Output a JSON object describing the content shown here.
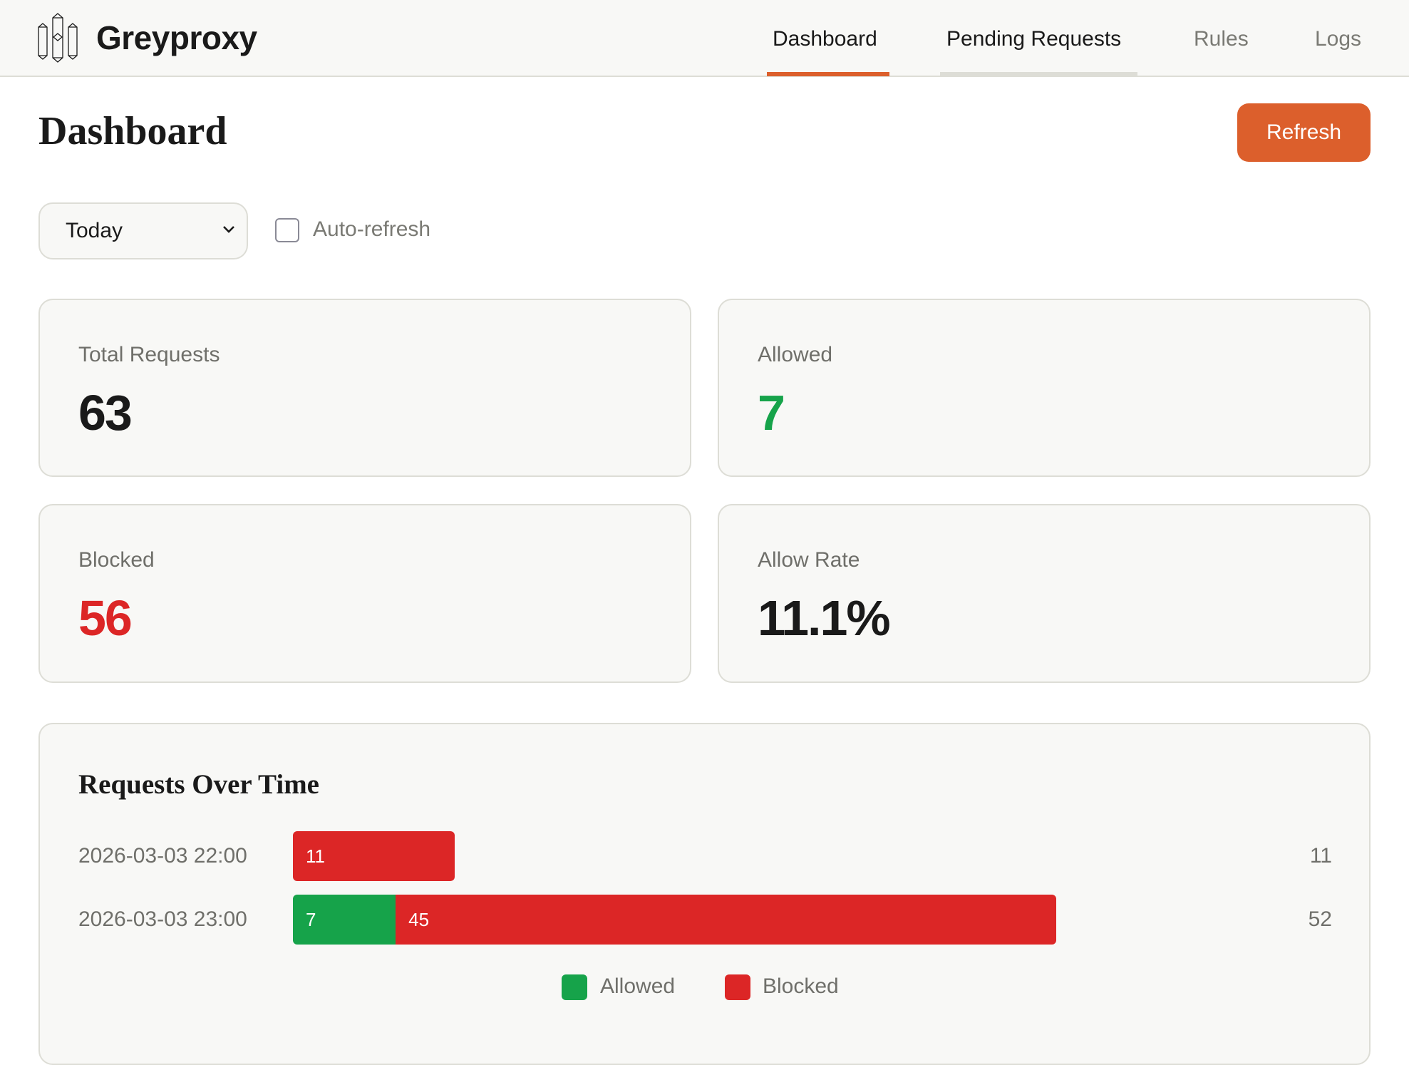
{
  "app": {
    "name": "Greyproxy",
    "logo_icon": "crystal-columns-logo"
  },
  "nav": {
    "items": [
      {
        "label": "Dashboard",
        "active": true
      },
      {
        "label": "Pending Requests"
      },
      {
        "label": "Rules"
      },
      {
        "label": "Logs"
      }
    ]
  },
  "page": {
    "title": "Dashboard",
    "refresh_label": "Refresh"
  },
  "filters": {
    "range_value": "Today",
    "auto_refresh_label": "Auto-refresh",
    "auto_refresh_checked": false
  },
  "stats": [
    {
      "label": "Total Requests",
      "value": "63"
    },
    {
      "label": "Allowed",
      "value": "7"
    },
    {
      "label": "Blocked",
      "value": "56"
    },
    {
      "label": "Allow Rate",
      "value": "11.1%"
    }
  ],
  "colors": {
    "accent": "#dc5f2c",
    "allowed": "#16a34a",
    "blocked": "#dc2626"
  },
  "chart_data": {
    "type": "bar",
    "title": "Requests Over Time",
    "orientation": "horizontal-stacked",
    "categories": [
      "2026-03-03 22:00",
      "2026-03-03 23:00"
    ],
    "series": [
      {
        "name": "Allowed",
        "values": [
          0,
          7
        ]
      },
      {
        "name": "Blocked",
        "values": [
          11,
          45
        ]
      }
    ],
    "totals": [
      "11",
      "52"
    ],
    "segment_labels": [
      [
        "",
        "11"
      ],
      [
        "7",
        "45"
      ]
    ],
    "legend": [
      "Allowed",
      "Blocked"
    ],
    "legend_placement": "bottom"
  }
}
